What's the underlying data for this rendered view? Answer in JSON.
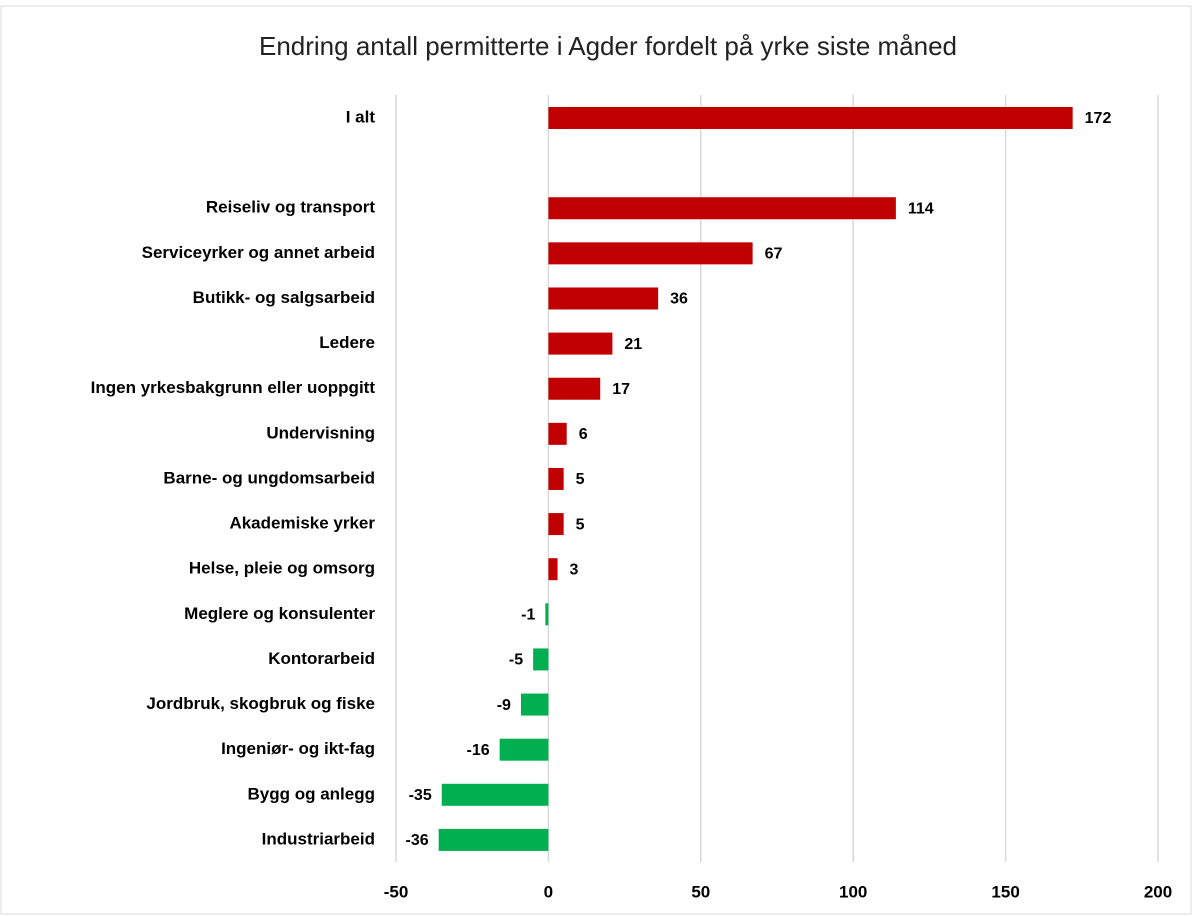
{
  "chart_data": {
    "type": "hbar",
    "title": "Endring antall permitterte i Agder fordelt på yrke siste måned",
    "categories": [
      "I alt",
      null,
      "Reiseliv og transport",
      "Serviceyrker og annet arbeid",
      "Butikk- og salgsarbeid",
      "Ledere",
      "Ingen yrkesbakgrunn eller uoppgitt",
      "Undervisning",
      "Barne- og ungdomsarbeid",
      "Akademiske yrker",
      "Helse, pleie og omsorg",
      "Meglere og konsulenter",
      "Kontorarbeid",
      "Jordbruk, skogbruk og fiske",
      "Ingeniør- og ikt-fag",
      "Bygg og anlegg",
      "Industriarbeid"
    ],
    "values": [
      172,
      null,
      114,
      67,
      36,
      21,
      17,
      6,
      5,
      5,
      3,
      -1,
      -5,
      -9,
      -16,
      -35,
      -36
    ],
    "colors": [
      "#c00000",
      null,
      "#c00000",
      "#c00000",
      "#c00000",
      "#c00000",
      "#c00000",
      "#c00000",
      "#c00000",
      "#c00000",
      "#c00000",
      "#00b050",
      "#00b050",
      "#00b050",
      "#00b050",
      "#00b050",
      "#00b050"
    ],
    "xlim": [
      -50,
      200
    ],
    "xticks": [
      -50,
      0,
      50,
      100,
      150,
      200
    ],
    "grid": true
  }
}
